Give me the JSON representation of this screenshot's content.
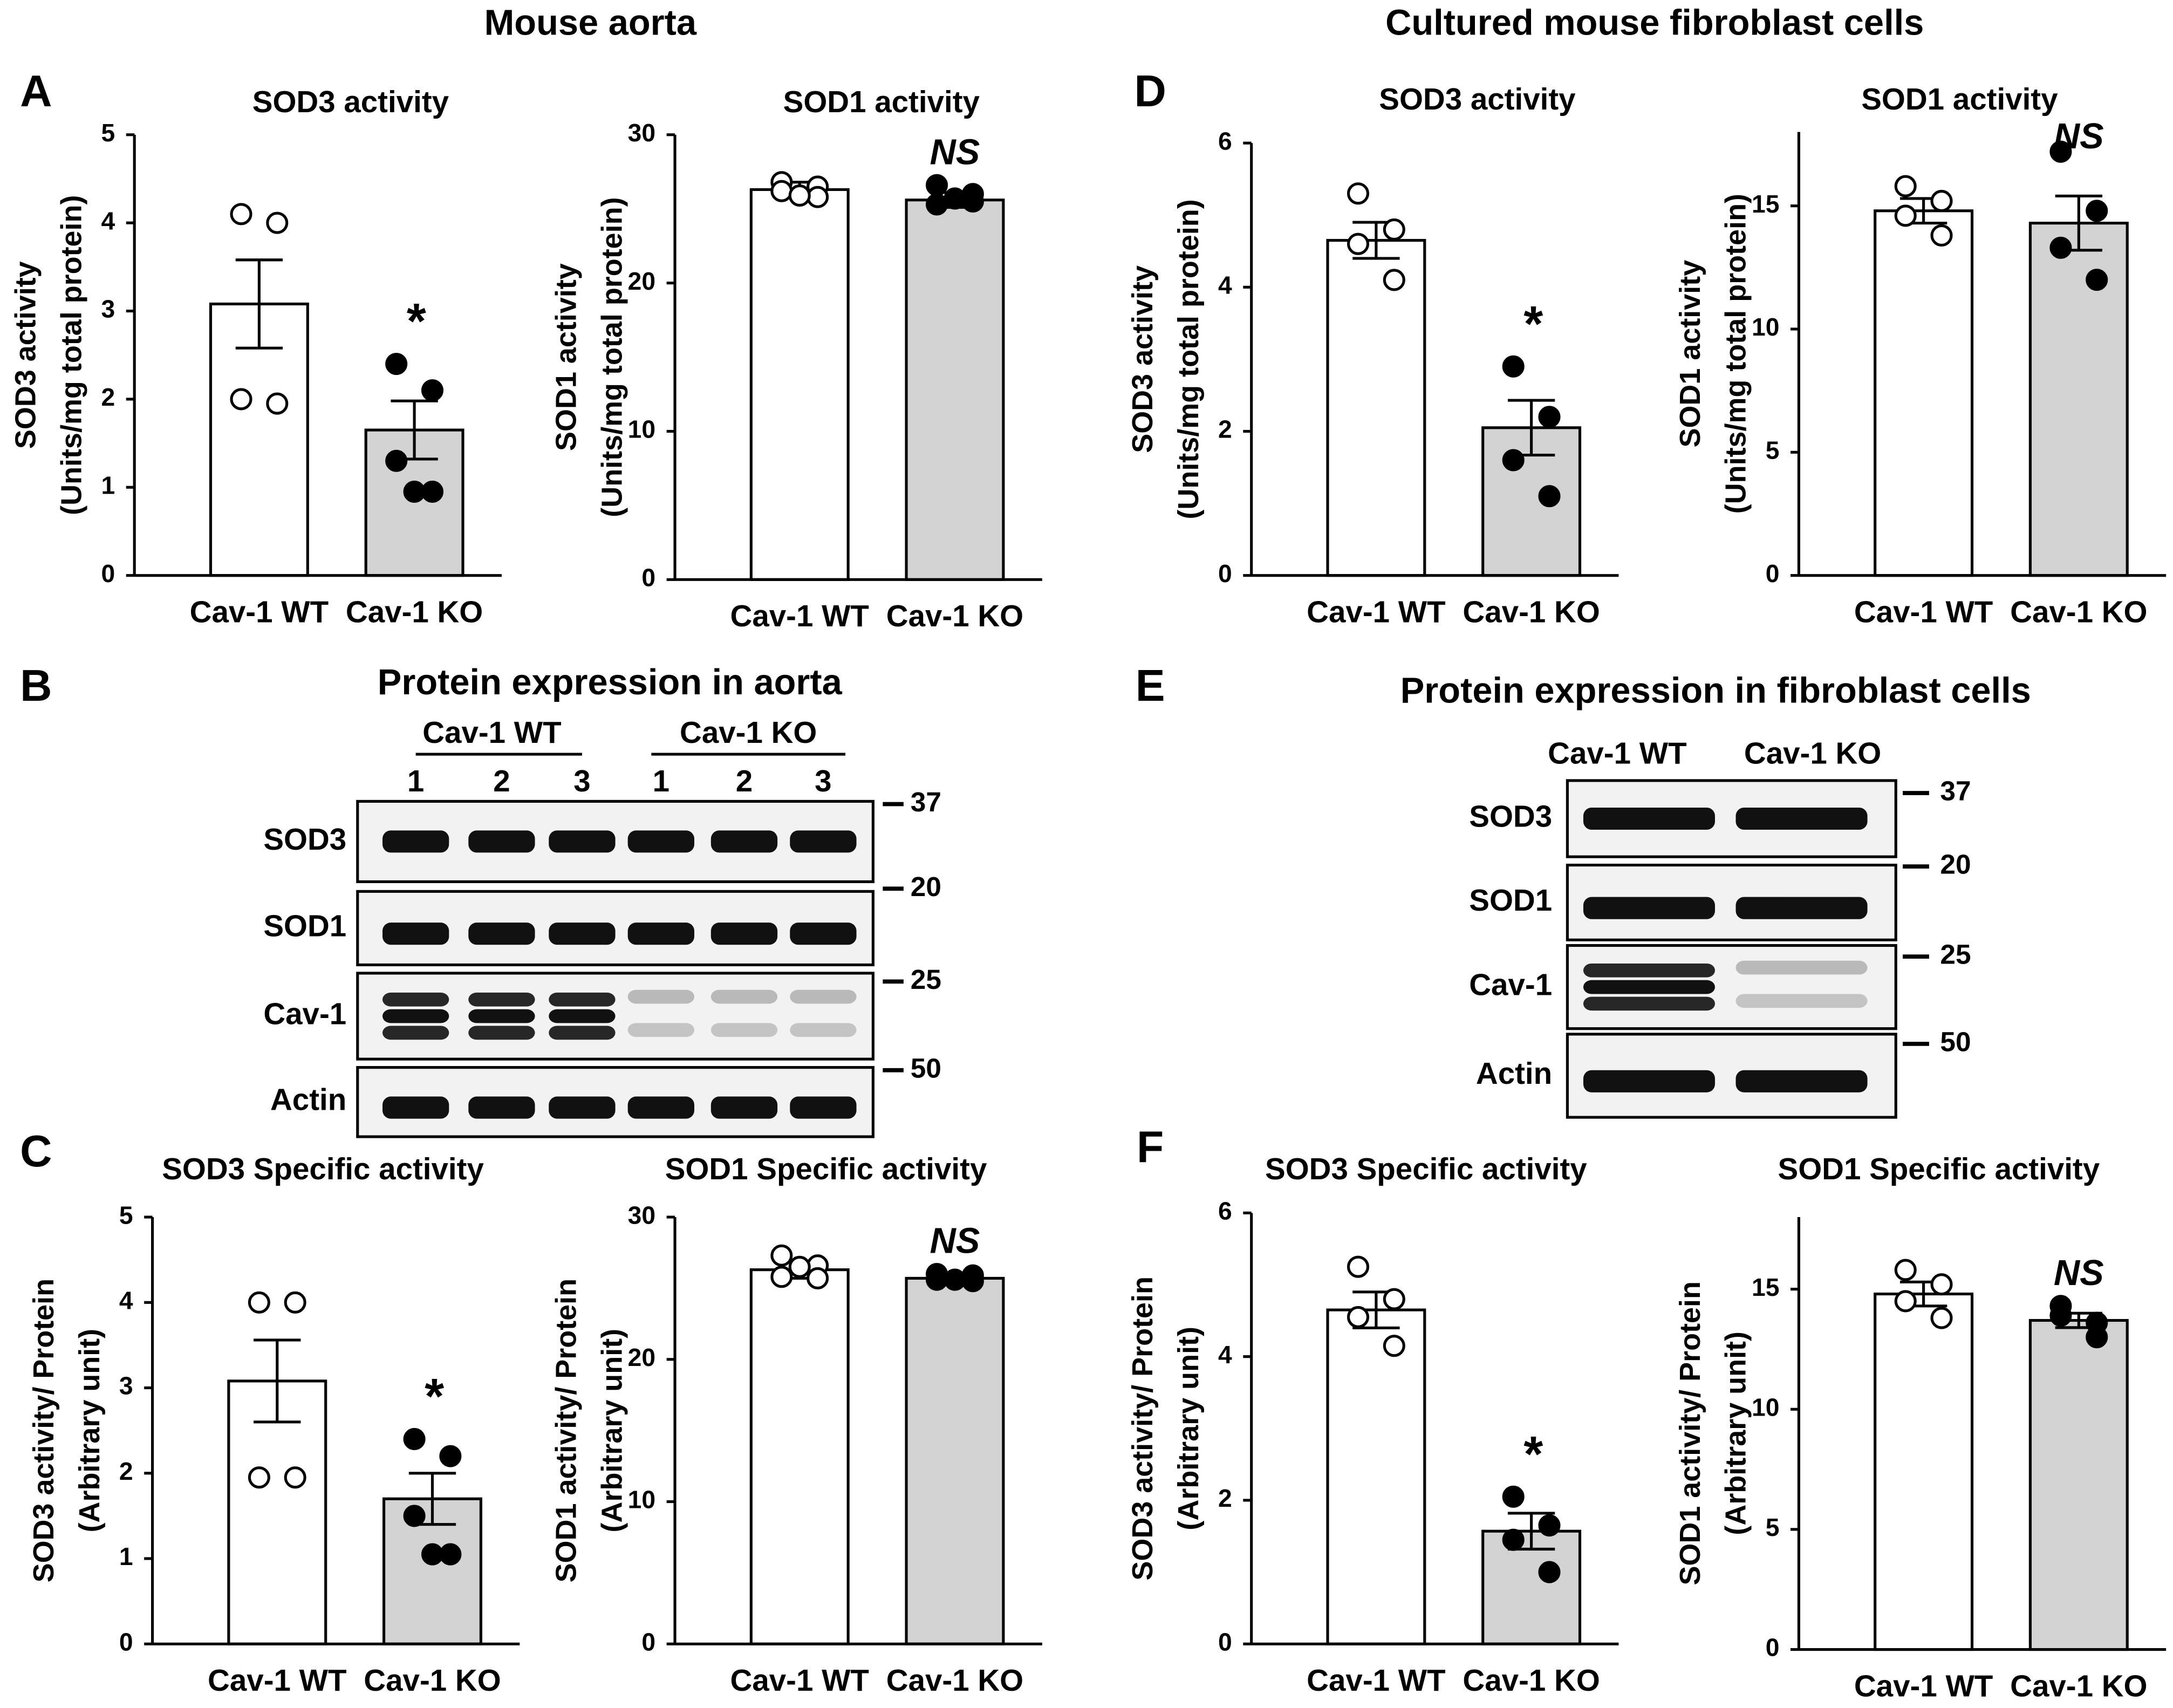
{
  "figure": {
    "headers": [
      "Mouse aorta",
      "Cultured mouse fibroblast cells"
    ],
    "panel_letters": [
      "A",
      "B",
      "C",
      "D",
      "E",
      "F"
    ],
    "blots": [
      {
        "title": "Protein expression in aorta",
        "groups": [
          "Cav-1 WT",
          "Cav-1 KO"
        ],
        "lanes": [
          "1",
          "2",
          "3",
          "1",
          "2",
          "3"
        ],
        "rows": [
          "SOD3",
          "SOD1",
          "Cav-1",
          "Actin"
        ],
        "markers": [
          37,
          20,
          25,
          50
        ]
      },
      {
        "title": "Protein expression in fibroblast cells",
        "groups": [
          "Cav-1 WT",
          "Cav-1 KO"
        ],
        "rows": [
          "SOD3",
          "SOD1",
          "Cav-1",
          "Actin"
        ],
        "markers": [
          37,
          20,
          25,
          50
        ]
      }
    ]
  },
  "chart_data": [
    {
      "type": "bar",
      "title": "SOD3 activity",
      "ylabel": [
        "SOD3 activity",
        "(Units/mg total protein)"
      ],
      "categories": [
        "Cav-1 WT",
        "Cav-1 KO"
      ],
      "values": [
        3.08,
        1.65
      ],
      "errors": [
        0.5,
        0.33
      ],
      "points": [
        [
          4.1,
          4.0,
          2.0,
          1.95
        ],
        [
          2.4,
          2.1,
          1.3,
          0.95,
          0.95
        ]
      ],
      "colors": [
        "#ffffff",
        "#d3d3d3"
      ],
      "point_colors": [
        "#ffffff",
        "#000000"
      ],
      "annotation": "*",
      "ylim": [
        0,
        5
      ],
      "yticks": [
        0,
        1,
        2,
        3,
        4,
        5
      ]
    },
    {
      "type": "bar",
      "title": "SOD1 activity",
      "ylabel": [
        "SOD1 activity",
        "(Units/mg total protein)"
      ],
      "categories": [
        "Cav-1 WT",
        "Cav-1 KO"
      ],
      "values": [
        26.3,
        25.6
      ],
      "errors": [
        0.5,
        0.5
      ],
      "points": [
        [
          26.8,
          26.5,
          26.2,
          25.8,
          25.9
        ],
        [
          26.6,
          26.0,
          25.3,
          25.5,
          25.7
        ]
      ],
      "colors": [
        "#ffffff",
        "#d3d3d3"
      ],
      "point_colors": [
        "#ffffff",
        "#000000"
      ],
      "annotation": "NS",
      "ylim": [
        0,
        30
      ],
      "yticks": [
        0,
        10,
        20,
        30
      ]
    },
    {
      "type": "bar",
      "title": "SOD3 activity",
      "ylabel": [
        "SOD3 activity",
        "(Units/mg total protein)"
      ],
      "categories": [
        "Cav-1 WT",
        "Cav-1 KO"
      ],
      "values": [
        4.65,
        2.05
      ],
      "errors": [
        0.25,
        0.38
      ],
      "points": [
        [
          5.3,
          4.8,
          4.6,
          4.1
        ],
        [
          2.9,
          2.2,
          1.6,
          1.1
        ]
      ],
      "colors": [
        "#ffffff",
        "#d3d3d3"
      ],
      "point_colors": [
        "#ffffff",
        "#000000"
      ],
      "annotation": "*",
      "ylim": [
        0,
        6
      ],
      "yticks": [
        0,
        2,
        4,
        6
      ]
    },
    {
      "type": "bar",
      "title": "SOD1 activity",
      "ylabel": [
        "SOD1 activity",
        "(Units/mg total protein)"
      ],
      "categories": [
        "Cav-1 WT",
        "Cav-1 KO"
      ],
      "values": [
        14.8,
        14.3
      ],
      "errors": [
        0.5,
        1.1
      ],
      "points": [
        [
          15.8,
          15.2,
          14.6,
          13.8
        ],
        [
          17.2,
          14.8,
          13.3,
          12.0
        ]
      ],
      "colors": [
        "#ffffff",
        "#d3d3d3"
      ],
      "point_colors": [
        "#ffffff",
        "#000000"
      ],
      "annotation": "NS",
      "ylim": [
        0,
        18
      ],
      "yticks": [
        0,
        5,
        10,
        15
      ]
    },
    {
      "type": "bar",
      "title": "SOD3 Specific activity",
      "ylabel": [
        "SOD3 activity/ Protein",
        "(Arbitrary unit)"
      ],
      "categories": [
        "Cav-1 WT",
        "Cav-1 KO"
      ],
      "values": [
        3.08,
        1.7
      ],
      "errors": [
        0.48,
        0.3
      ],
      "points": [
        [
          4.0,
          4.0,
          1.95,
          1.95
        ],
        [
          2.4,
          2.2,
          1.5,
          1.05,
          1.05
        ]
      ],
      "colors": [
        "#ffffff",
        "#d3d3d3"
      ],
      "point_colors": [
        "#ffffff",
        "#000000"
      ],
      "annotation": "*",
      "ylim": [
        0,
        5
      ],
      "yticks": [
        0,
        1,
        2,
        3,
        4,
        5
      ]
    },
    {
      "type": "bar",
      "title": "SOD1 Specific activity",
      "ylabel": [
        "SOD1 activity/ Protein",
        "(Arbitrary unit)"
      ],
      "categories": [
        "Cav-1 WT",
        "Cav-1 KO"
      ],
      "values": [
        26.3,
        25.7
      ],
      "errors": [
        0.6,
        0.2
      ],
      "points": [
        [
          27.3,
          26.6,
          25.8,
          25.7,
          26.5
        ],
        [
          26.0,
          25.9,
          25.6,
          25.5,
          25.6
        ]
      ],
      "colors": [
        "#ffffff",
        "#d3d3d3"
      ],
      "point_colors": [
        "#ffffff",
        "#000000"
      ],
      "annotation": "NS",
      "ylim": [
        0,
        30
      ],
      "yticks": [
        0,
        10,
        20,
        30
      ]
    },
    {
      "type": "bar",
      "title": "SOD3 Specific activity",
      "ylabel": [
        "SOD3 activity/ Protein",
        "(Arbitrary unit)"
      ],
      "categories": [
        "Cav-1 WT",
        "Cav-1 KO"
      ],
      "values": [
        4.65,
        1.57
      ],
      "errors": [
        0.25,
        0.25
      ],
      "points": [
        [
          5.25,
          4.8,
          4.55,
          4.15
        ],
        [
          2.05,
          1.65,
          1.45,
          1.0
        ]
      ],
      "colors": [
        "#ffffff",
        "#d3d3d3"
      ],
      "point_colors": [
        "#ffffff",
        "#000000"
      ],
      "annotation": "*",
      "ylim": [
        0,
        6
      ],
      "yticks": [
        0,
        2,
        4,
        6
      ]
    },
    {
      "type": "bar",
      "title": "SOD1 Specific activity",
      "ylabel": [
        "SOD1 activity/ Protein",
        "(Arbitrary unit)"
      ],
      "categories": [
        "Cav-1 WT",
        "Cav-1 KO"
      ],
      "values": [
        14.8,
        13.7
      ],
      "errors": [
        0.5,
        0.3
      ],
      "points": [
        [
          15.8,
          15.2,
          14.5,
          13.8
        ],
        [
          14.3,
          13.6,
          13.9,
          13.0
        ]
      ],
      "colors": [
        "#ffffff",
        "#d3d3d3"
      ],
      "point_colors": [
        "#ffffff",
        "#000000"
      ],
      "annotation": "NS",
      "ylim": [
        0,
        18
      ],
      "yticks": [
        0,
        5,
        10,
        15
      ]
    }
  ]
}
